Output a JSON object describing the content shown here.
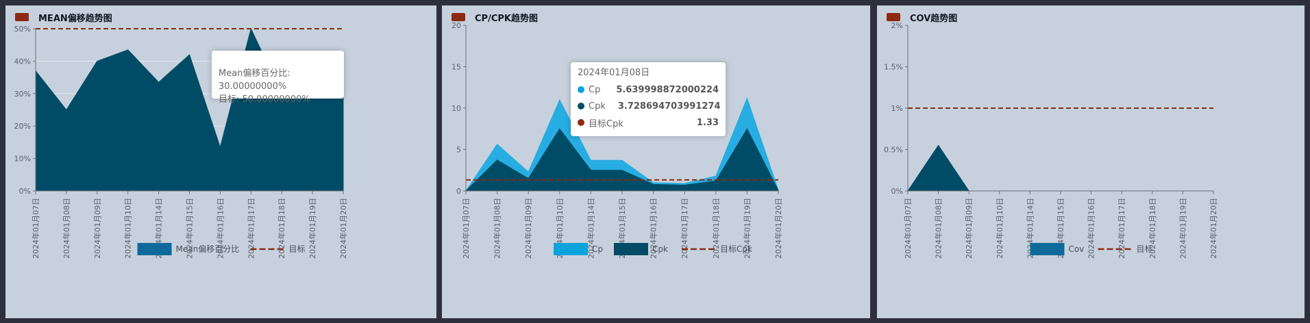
{
  "colors": {
    "mean_area": "#004c66",
    "cp_area": "#27ade1",
    "cpk_area": "#004c66",
    "cov_area": "#004c66",
    "target_line": "#8e2a12",
    "legend_mean": "#0e6a9b",
    "legend_cp": "#0aa3dc",
    "legend_cpk": "#004c66",
    "legend_cov": "#0e6a9b",
    "title_marker": "#8e2a12"
  },
  "chart_data": [
    {
      "type": "area",
      "title": "MEAN偏移趋势图",
      "categories": [
        "2024年01月07日",
        "2024年01月08日",
        "2024年01月09日",
        "2024年01月10日",
        "2024年01月14日",
        "2024年01月15日",
        "2024年01月16日",
        "2024年01月17日",
        "2024年01月18日",
        "2024年01月19日",
        "2024年01月20日"
      ],
      "series": [
        {
          "name": "Mean偏移百分比",
          "values": [
            37,
            25,
            40,
            43.5,
            33.5,
            42,
            13.5,
            50,
            30,
            33.5,
            33.5
          ]
        },
        {
          "name": "目标",
          "values": [
            50,
            50,
            50,
            50,
            50,
            50,
            50,
            50,
            50,
            50,
            50
          ],
          "style": "dashed-line"
        }
      ],
      "ylim": [
        0,
        50
      ],
      "yticks": [
        "0%",
        "10%",
        "20%",
        "30%",
        "40%",
        "50%"
      ],
      "grid": true,
      "legend": "bottom-center",
      "tooltip": {
        "lines": [
          "Mean偏移百分比: 30.00000000%",
          "目标: 50.00000000%"
        ]
      }
    },
    {
      "type": "area",
      "title": "CP/CPK趋势图",
      "categories": [
        "2024年01月07日",
        "2024年01月08日",
        "2024年01月09日",
        "2024年01月10日",
        "2024年01月14日",
        "2024年01月15日",
        "2024年01月16日",
        "2024年01月17日",
        "2024年01月18日",
        "2024年01月19日",
        "2024年01月20日"
      ],
      "series": [
        {
          "name": "Cp",
          "values": [
            0,
            5.64,
            2.3,
            11,
            3.7,
            3.7,
            1.0,
            0.9,
            1.8,
            11.2,
            0.1
          ]
        },
        {
          "name": "Cpk",
          "values": [
            0,
            3.73,
            1.5,
            7.5,
            2.5,
            2.5,
            0.8,
            0.7,
            1.2,
            7.5,
            0.05
          ]
        },
        {
          "name": "目标Cpk",
          "values": [
            1.33,
            1.33,
            1.33,
            1.33,
            1.33,
            1.33,
            1.33,
            1.33,
            1.33,
            1.33,
            1.33
          ],
          "style": "dashed-line"
        }
      ],
      "ylim": [
        0,
        20
      ],
      "yticks": [
        "0",
        "5",
        "10",
        "15",
        "20"
      ],
      "grid": false,
      "legend": "bottom-center",
      "tooltip": {
        "title": "2024年01月08日",
        "rows": [
          {
            "name": "Cp",
            "value": "5.639998872000224"
          },
          {
            "name": "Cpk",
            "value": "3.728694703991274"
          },
          {
            "name": "目标Cpk",
            "value": "1.33"
          }
        ]
      }
    },
    {
      "type": "area",
      "title": "COV趋势图",
      "categories": [
        "2024年01月07日",
        "2024年01月08日",
        "2024年01月09日",
        "2024年01月10日",
        "2024年01月14日",
        "2024年01月15日",
        "2024年01月16日",
        "2024年01月17日",
        "2024年01月18日",
        "2024年01月19日",
        "2024年01月20日"
      ],
      "series": [
        {
          "name": "Cov",
          "values": [
            0,
            0.55,
            0,
            0,
            0,
            0,
            0,
            0,
            0,
            0,
            0
          ]
        },
        {
          "name": "目标",
          "values": [
            1,
            1,
            1,
            1,
            1,
            1,
            1,
            1,
            1,
            1,
            1
          ],
          "style": "dashed-line"
        }
      ],
      "ylim": [
        0,
        2
      ],
      "yticks": [
        "0%",
        "0.5%",
        "1%",
        "1.5%",
        "2%"
      ],
      "grid": false,
      "legend": "bottom-center"
    }
  ]
}
